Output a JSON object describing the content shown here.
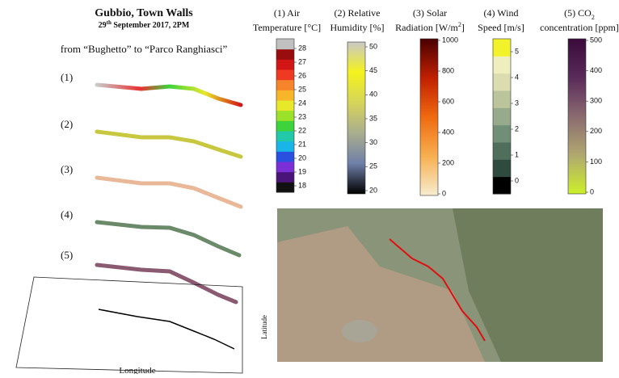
{
  "header": {
    "title": "Gubbio, Town Walls",
    "date": [
      "29",
      "th",
      " September 2017, 2PM"
    ],
    "route": "from “Bughetto” to “Parco Ranghiasci”"
  },
  "tracks": [
    "(1)",
    "(2)",
    "(3)",
    "(4)",
    "(5)"
  ],
  "plot": {
    "x_label": "Longitude",
    "y_label": "Latitude"
  },
  "colorbars": [
    {
      "title": [
        "(1) Air",
        "Temperature [°C]"
      ],
      "ticks": [
        18,
        19,
        20,
        21,
        22,
        23,
        24,
        25,
        26,
        27,
        28
      ],
      "style": "discrete",
      "colors": [
        "#111111",
        "#4a1578",
        "#7b2fd6",
        "#2a50e0",
        "#19b5e8",
        "#22c9a8",
        "#3cd33c",
        "#9be12a",
        "#e8e82a",
        "#f7b52a",
        "#f5842a",
        "#ee3a22",
        "#d21515",
        "#9a0d0d",
        "#c0c0c0"
      ]
    },
    {
      "title": [
        "(2) Relative",
        "Humidity [%]"
      ],
      "ticks": [
        20,
        25,
        30,
        35,
        40,
        45,
        50
      ],
      "style": "gradient",
      "colors": [
        "#000000",
        "#6f7fa8",
        "#a9ae8e",
        "#d6d45a",
        "#f4f21c",
        "#c8c8c8"
      ]
    },
    {
      "title": [
        "(3) Solar",
        "Radiation [W/m",
        "2",
        "]"
      ],
      "ticks": [
        0,
        200,
        400,
        600,
        800,
        1000
      ],
      "style": "gradient",
      "colors": [
        "#f7ecd0",
        "#f7b050",
        "#f06a10",
        "#c02000",
        "#4a0000"
      ]
    },
    {
      "title": [
        "(4) Wind",
        "Speed [m/s]"
      ],
      "ticks": [
        0,
        1,
        2,
        3,
        4,
        5
      ],
      "style": "discrete",
      "colors": [
        "#000000",
        "#2f4a3e",
        "#4f6e5c",
        "#718f76",
        "#97ab8c",
        "#bcc49c",
        "#dbdcb0",
        "#eeeebe",
        "#f2f22a"
      ]
    },
    {
      "title": [
        "(5) CO",
        "2",
        "concentration [ppm]"
      ],
      "ticks": [
        0,
        100,
        200,
        300,
        400,
        500
      ],
      "style": "gradient",
      "colors": [
        "#ccf02a",
        "#b0a870",
        "#8a6a70",
        "#5a2a5a",
        "#3a0a3a"
      ]
    }
  ]
}
